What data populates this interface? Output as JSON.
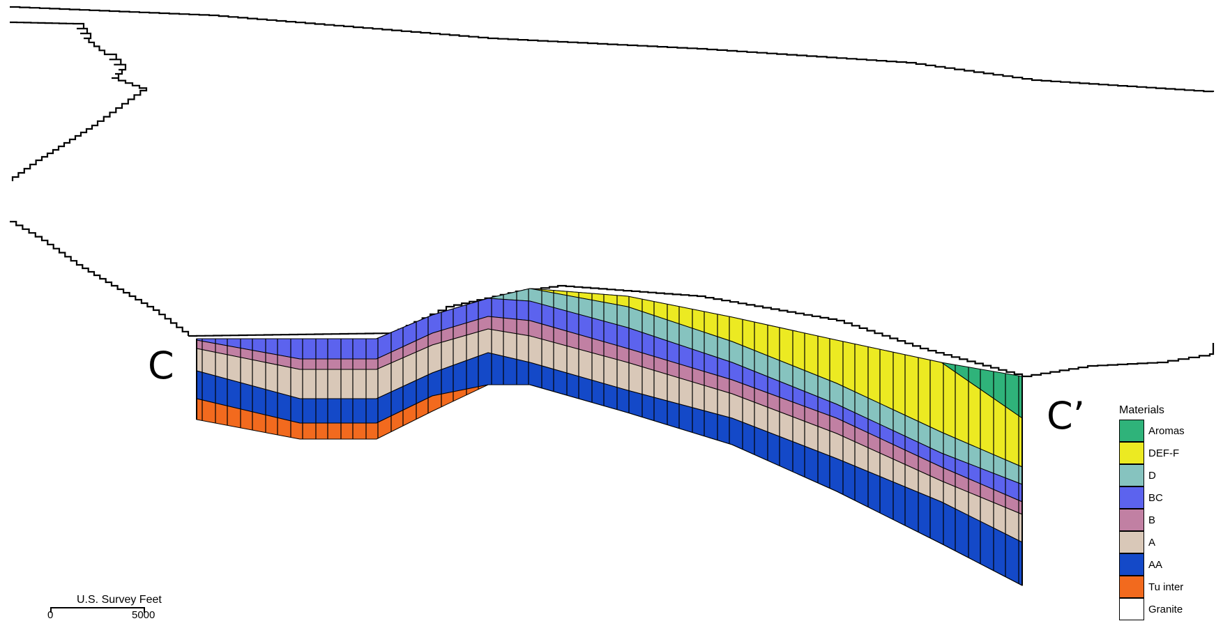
{
  "section": {
    "start_label": "C",
    "end_label": "C’"
  },
  "legend": {
    "title": "Materials",
    "items": [
      {
        "name": "Aromas",
        "color": "#2fb37a"
      },
      {
        "name": "DEF-F",
        "color": "#ecea22"
      },
      {
        "name": "D",
        "color": "#86c3bf"
      },
      {
        "name": "BC",
        "color": "#5c63ee"
      },
      {
        "name": "B",
        "color": "#c180a3"
      },
      {
        "name": "A",
        "color": "#d9c8b8"
      },
      {
        "name": "AA",
        "color": "#1449c8"
      },
      {
        "name": "Tu inter",
        "color": "#f26a1e"
      },
      {
        "name": "Granite",
        "color": "#ffffff"
      }
    ]
  },
  "scale_bar": {
    "title": "U.S. Survey Feet",
    "min": "0",
    "max": "5000"
  }
}
